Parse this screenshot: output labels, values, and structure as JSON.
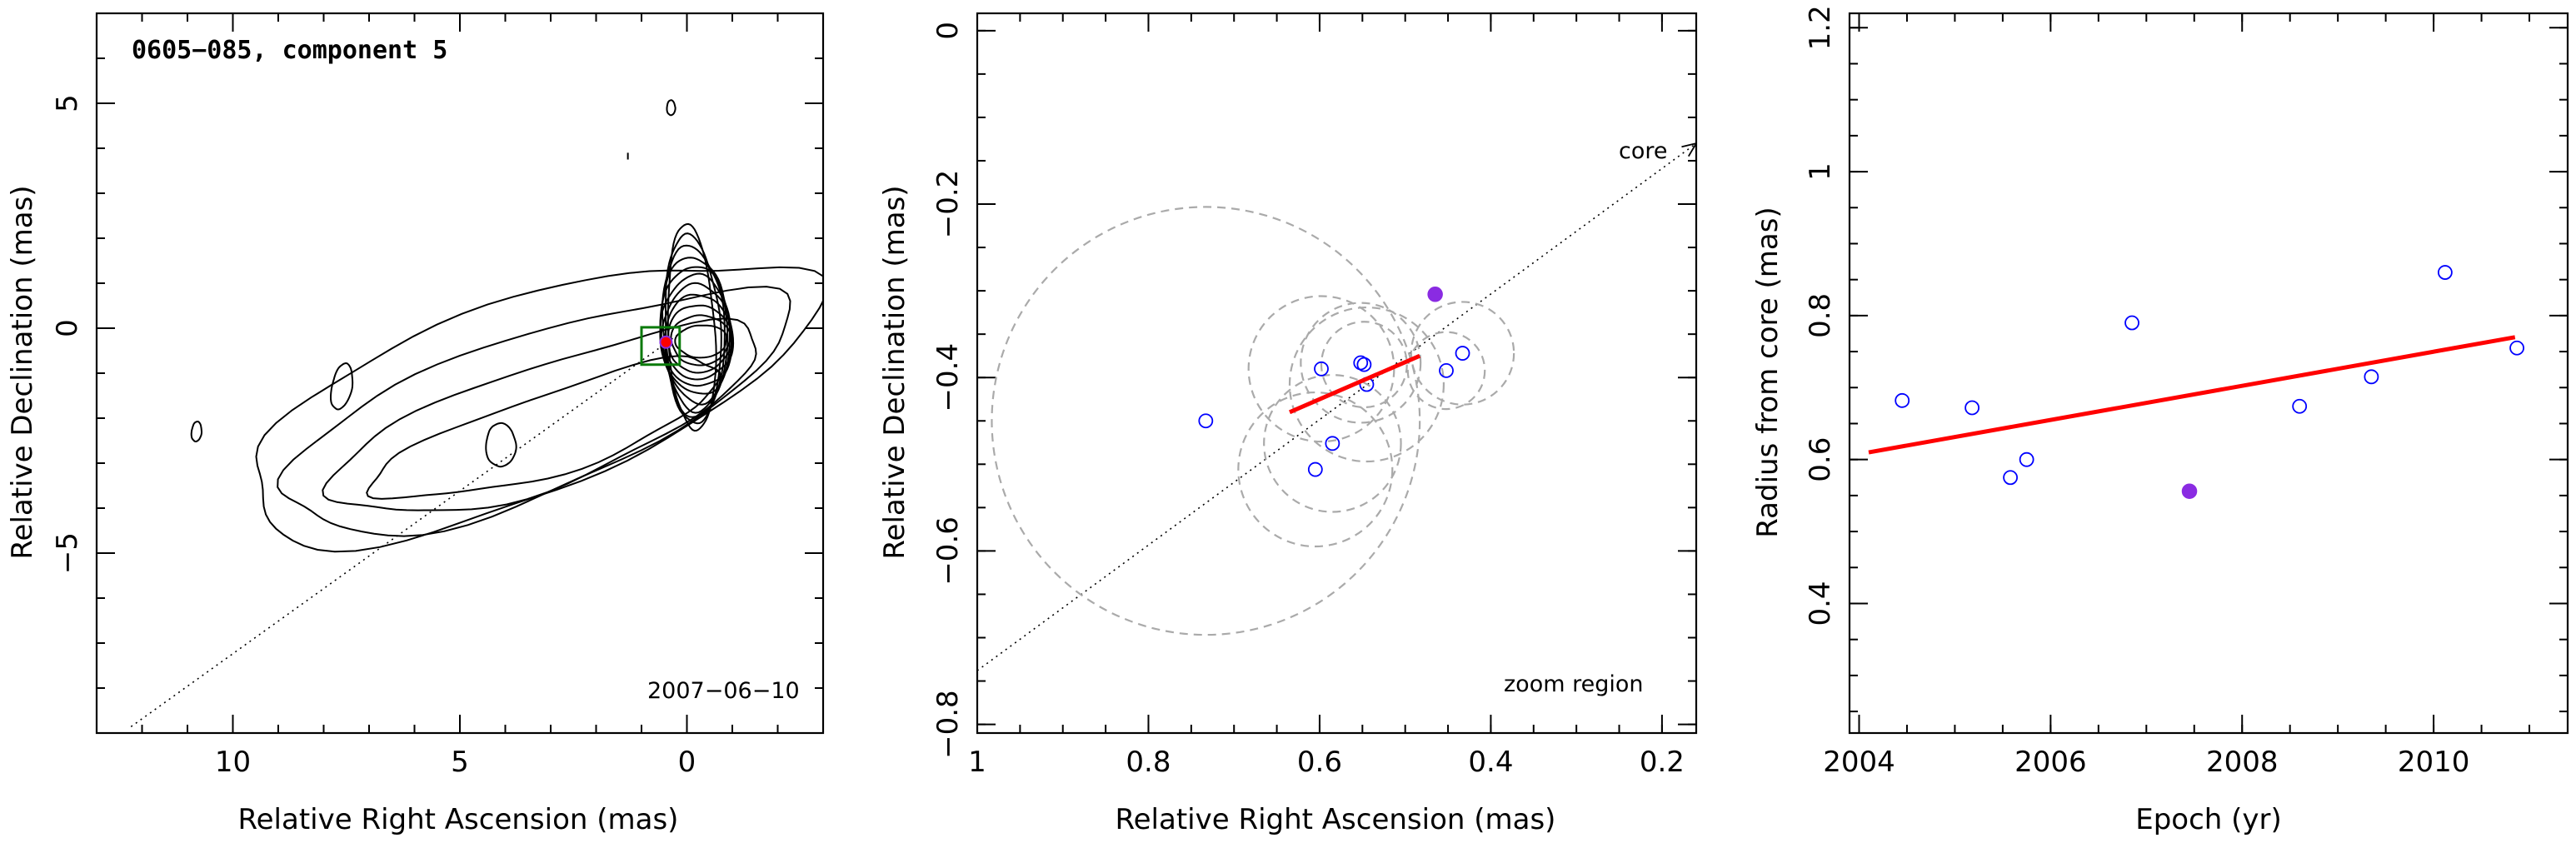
{
  "chart_data": [
    {
      "type": "contour",
      "title": "0605−085, component 5",
      "date_label": "2007−06−10",
      "xlabel": "Relative Right Ascension (mas)",
      "ylabel": "Relative Declination (mas)",
      "xlim": [
        13,
        -3
      ],
      "ylim": [
        -9,
        7
      ],
      "xticks": [
        10,
        5,
        0
      ],
      "yticks": [
        5,
        0,
        -5
      ],
      "component": {
        "ra": 0.46,
        "dec": -0.31
      },
      "zoom_box": {
        "ra": [
          1.0,
          0.16
        ],
        "dec": [
          -0.81,
          0.02
        ]
      },
      "jet_axis": {
        "from": [
          0,
          0
        ],
        "to": [
          12.3,
          -8.9
        ]
      }
    },
    {
      "type": "scatter",
      "annotation": "zoom region",
      "arrow_label": "core",
      "xlabel": "Relative Right Ascension (mas)",
      "ylabel": "Relative Declination (mas)",
      "xlim": [
        1.0,
        0.16
      ],
      "ylim": [
        -0.81,
        0.02
      ],
      "xticks": [
        1,
        0.8,
        0.6,
        0.4,
        0.2
      ],
      "yticks": [
        0,
        -0.2,
        -0.4,
        -0.6,
        -0.8
      ],
      "points": [
        {
          "ra": 0.733,
          "dec": -0.45,
          "size": 0.25
        },
        {
          "ra": 0.598,
          "dec": -0.39,
          "size": 0.085
        },
        {
          "ra": 0.552,
          "dec": -0.383,
          "size": 0.07
        },
        {
          "ra": 0.548,
          "dec": -0.385,
          "size": 0.05
        },
        {
          "ra": 0.545,
          "dec": -0.408,
          "size": 0.09
        },
        {
          "ra": 0.585,
          "dec": -0.476,
          "size": 0.08
        },
        {
          "ra": 0.605,
          "dec": -0.506,
          "size": 0.09
        },
        {
          "ra": 0.452,
          "dec": -0.392,
          "size": 0.045
        },
        {
          "ra": 0.433,
          "dec": -0.372,
          "size": 0.06
        }
      ],
      "highlight_point": {
        "ra": 0.465,
        "dec": -0.304
      },
      "fit_line": [
        [
          0.635,
          -0.44
        ],
        [
          0.483,
          -0.375
        ]
      ],
      "core_direction": {
        "from": [
          1.0,
          -0.738
        ],
        "to": [
          0.16,
          -0.13
        ]
      }
    },
    {
      "type": "scatter",
      "xlabel": "Epoch (yr)",
      "ylabel": "Radius from core (mas)",
      "xlim": [
        2003.9,
        2011.4
      ],
      "ylim": [
        0.22,
        1.22
      ],
      "xticks": [
        2004,
        2006,
        2008,
        2010
      ],
      "yticks": [
        0.4,
        0.6,
        0.8,
        1,
        1.2
      ],
      "points": [
        {
          "x": 2004.45,
          "y": 0.682
        },
        {
          "x": 2005.18,
          "y": 0.672
        },
        {
          "x": 2005.58,
          "y": 0.575
        },
        {
          "x": 2005.75,
          "y": 0.6
        },
        {
          "x": 2006.85,
          "y": 0.79
        },
        {
          "x": 2008.6,
          "y": 0.674
        },
        {
          "x": 2009.35,
          "y": 0.715
        },
        {
          "x": 2010.12,
          "y": 0.86
        },
        {
          "x": 2010.87,
          "y": 0.755
        }
      ],
      "highlight_point": {
        "x": 2007.45,
        "y": 0.556
      },
      "fit_line": [
        [
          2004.1,
          0.61
        ],
        [
          2010.85,
          0.77
        ]
      ]
    }
  ]
}
